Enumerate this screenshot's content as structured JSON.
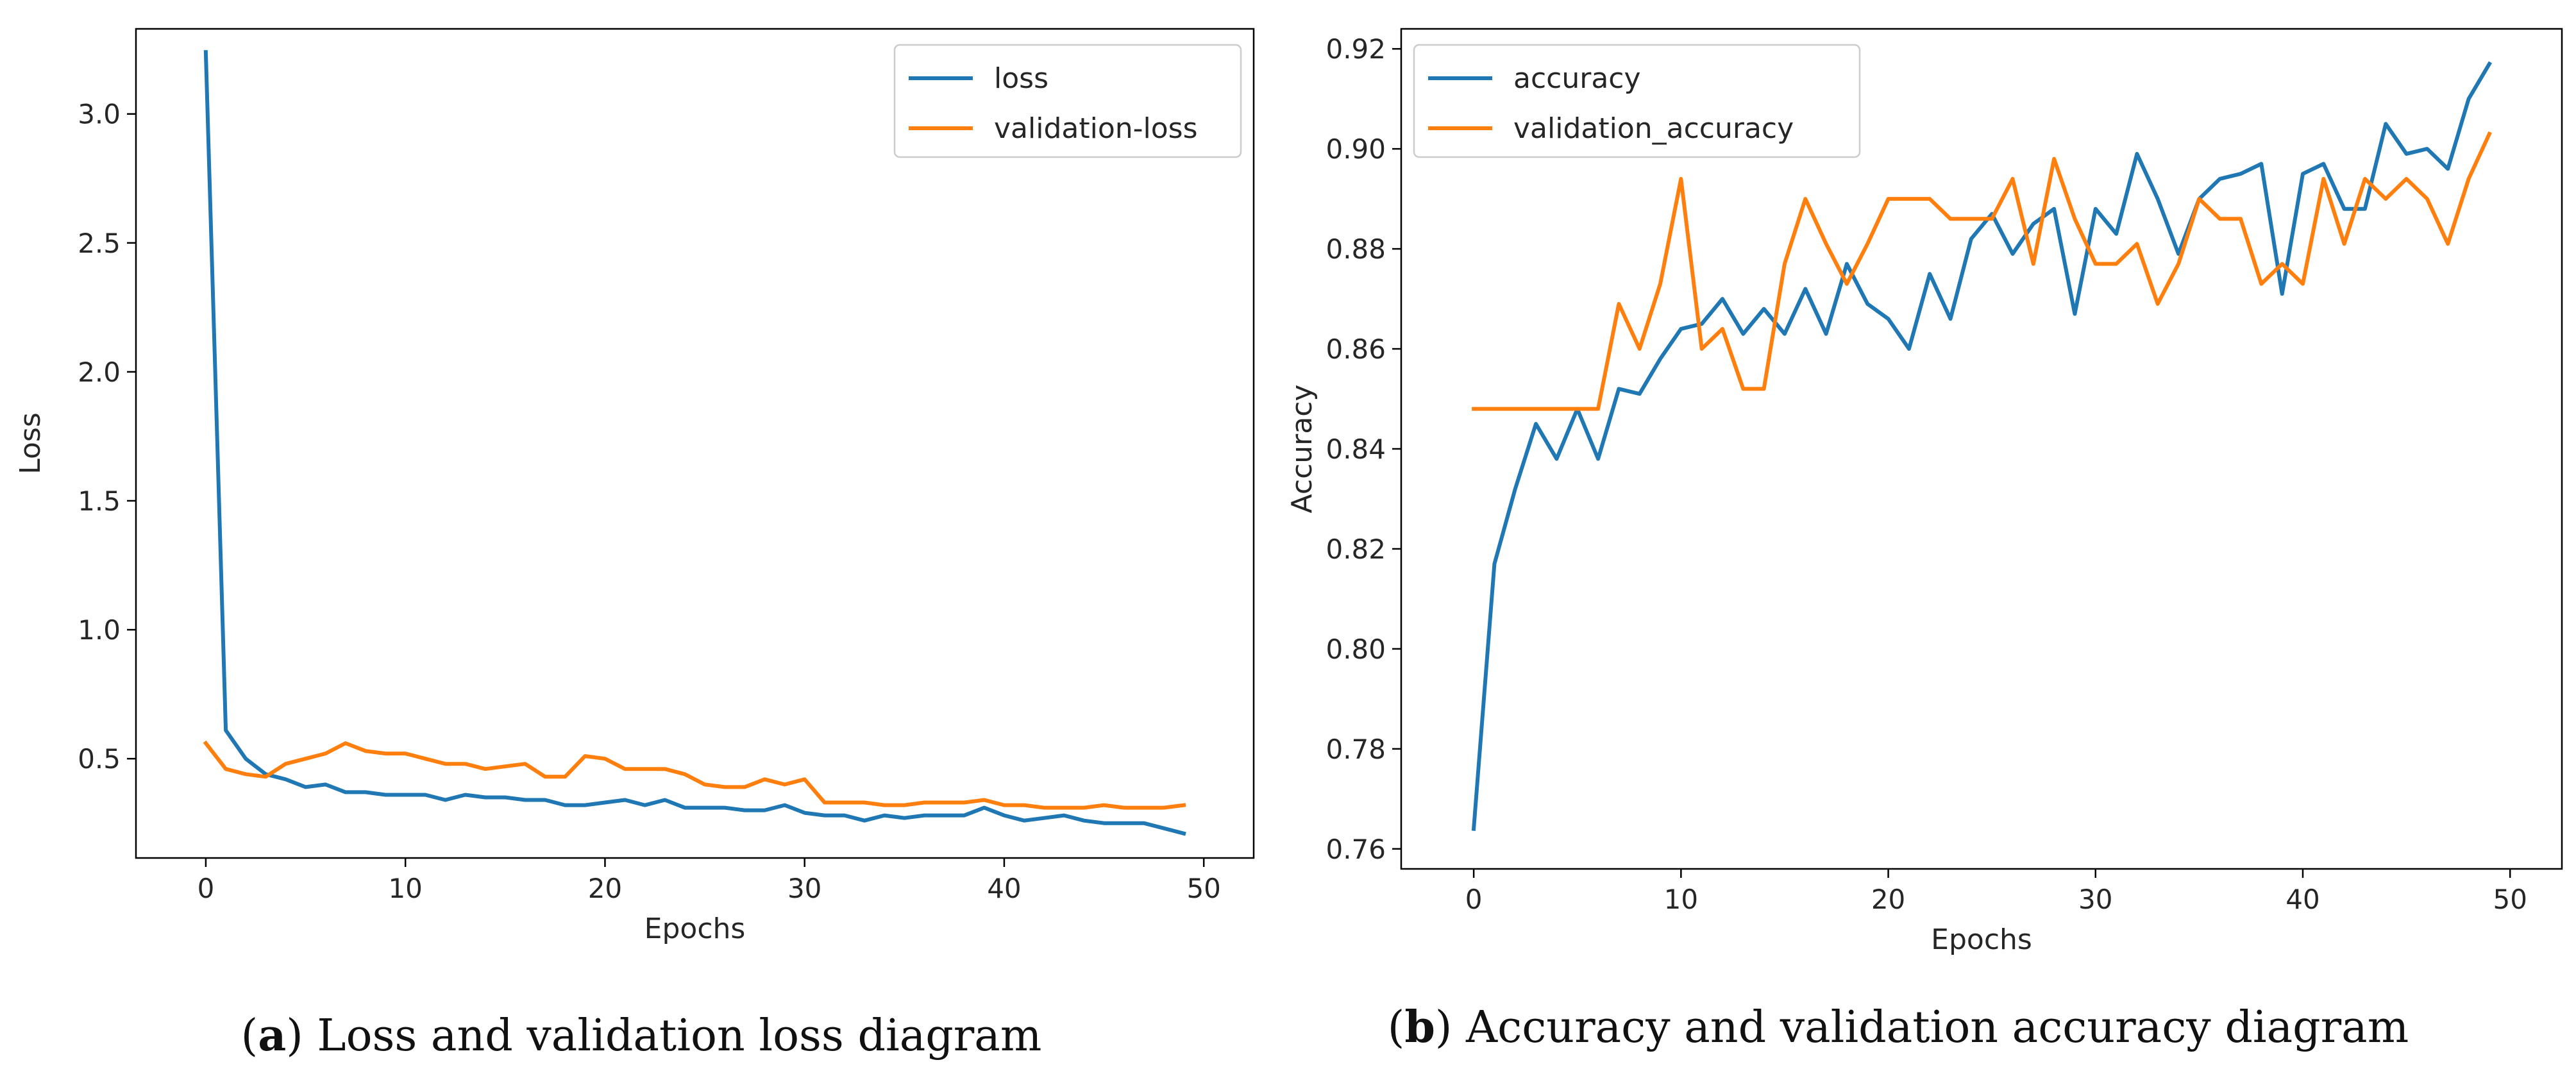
{
  "chart_data": [
    {
      "type": "line",
      "id": "a",
      "title": "",
      "xlabel": "Epochs",
      "ylabel": "Loss",
      "xlim": [
        -3.5,
        52.5
      ],
      "ylim": [
        0.115,
        3.33
      ],
      "xticks": [
        0,
        10,
        20,
        30,
        40,
        50
      ],
      "yticks": [
        0.5,
        1.0,
        1.5,
        2.0,
        2.5,
        3.0
      ],
      "xtick_labels": [
        "0",
        "10",
        "20",
        "30",
        "40",
        "50"
      ],
      "ytick_labels": [
        "0.5",
        "1.0",
        "1.5",
        "2.0",
        "2.5",
        "3.0"
      ],
      "legend_position": "top-right",
      "grid": false,
      "caption": {
        "letter": "a",
        "text": ") Loss and validation loss diagram",
        "open": "("
      },
      "x": [
        0,
        1,
        2,
        3,
        4,
        5,
        6,
        7,
        8,
        9,
        10,
        11,
        12,
        13,
        14,
        15,
        16,
        17,
        18,
        19,
        20,
        21,
        22,
        23,
        24,
        25,
        26,
        27,
        28,
        29,
        30,
        31,
        32,
        33,
        34,
        35,
        36,
        37,
        38,
        39,
        40,
        41,
        42,
        43,
        44,
        45,
        46,
        47,
        48,
        49
      ],
      "series": [
        {
          "name": "loss",
          "color": "#1f77b4",
          "values": [
            3.24,
            0.61,
            0.5,
            0.44,
            0.42,
            0.39,
            0.4,
            0.37,
            0.37,
            0.36,
            0.36,
            0.36,
            0.34,
            0.36,
            0.35,
            0.35,
            0.34,
            0.34,
            0.32,
            0.32,
            0.33,
            0.34,
            0.32,
            0.34,
            0.31,
            0.31,
            0.31,
            0.3,
            0.3,
            0.32,
            0.29,
            0.28,
            0.28,
            0.26,
            0.28,
            0.27,
            0.28,
            0.28,
            0.28,
            0.31,
            0.28,
            0.26,
            0.27,
            0.28,
            0.26,
            0.25,
            0.25,
            0.25,
            0.23,
            0.21
          ]
        },
        {
          "name": "validation-loss",
          "color": "#ff7f0e",
          "values": [
            0.56,
            0.46,
            0.44,
            0.43,
            0.48,
            0.5,
            0.52,
            0.56,
            0.53,
            0.52,
            0.52,
            0.5,
            0.48,
            0.48,
            0.46,
            0.47,
            0.48,
            0.43,
            0.43,
            0.51,
            0.5,
            0.46,
            0.46,
            0.46,
            0.44,
            0.4,
            0.39,
            0.39,
            0.42,
            0.4,
            0.42,
            0.33,
            0.33,
            0.33,
            0.32,
            0.32,
            0.33,
            0.33,
            0.33,
            0.34,
            0.32,
            0.32,
            0.31,
            0.31,
            0.31,
            0.32,
            0.31,
            0.31,
            0.31,
            0.32
          ]
        }
      ]
    },
    {
      "type": "line",
      "id": "b",
      "title": "",
      "xlabel": "Epochs",
      "ylabel": "Accuracy",
      "xlim": [
        -3.5,
        52.5
      ],
      "ylim": [
        0.756,
        0.924
      ],
      "xticks": [
        0,
        10,
        20,
        30,
        40,
        50
      ],
      "yticks": [
        0.76,
        0.78,
        0.8,
        0.82,
        0.84,
        0.86,
        0.88,
        0.9,
        0.92
      ],
      "xtick_labels": [
        "0",
        "10",
        "20",
        "30",
        "40",
        "50"
      ],
      "ytick_labels": [
        "0.76",
        "0.78",
        "0.80",
        "0.82",
        "0.84",
        "0.86",
        "0.88",
        "0.90",
        "0.92"
      ],
      "legend_position": "top-left",
      "grid": false,
      "caption": {
        "letter": "b",
        "text": ") Accuracy and validation accuracy diagram",
        "open": "("
      },
      "x": [
        0,
        1,
        2,
        3,
        4,
        5,
        6,
        7,
        8,
        9,
        10,
        11,
        12,
        13,
        14,
        15,
        16,
        17,
        18,
        19,
        20,
        21,
        22,
        23,
        24,
        25,
        26,
        27,
        28,
        29,
        30,
        31,
        32,
        33,
        34,
        35,
        36,
        37,
        38,
        39,
        40,
        41,
        42,
        43,
        44,
        45,
        46,
        47,
        48,
        49
      ],
      "series": [
        {
          "name": "accuracy",
          "color": "#1f77b4",
          "values": [
            0.764,
            0.817,
            0.832,
            0.845,
            0.838,
            0.848,
            0.838,
            0.852,
            0.851,
            0.858,
            0.864,
            0.865,
            0.87,
            0.863,
            0.868,
            0.863,
            0.872,
            0.863,
            0.877,
            0.869,
            0.866,
            0.86,
            0.875,
            0.866,
            0.882,
            0.887,
            0.879,
            0.885,
            0.888,
            0.867,
            0.888,
            0.883,
            0.899,
            0.89,
            0.879,
            0.89,
            0.894,
            0.895,
            0.897,
            0.871,
            0.895,
            0.897,
            0.888,
            0.888,
            0.905,
            0.899,
            0.9,
            0.896,
            0.91,
            0.917
          ]
        },
        {
          "name": "validation_accuracy",
          "color": "#ff7f0e",
          "values": [
            0.848,
            0.848,
            0.848,
            0.848,
            0.848,
            0.848,
            0.848,
            0.869,
            0.86,
            0.873,
            0.894,
            0.86,
            0.864,
            0.852,
            0.852,
            0.877,
            0.89,
            0.881,
            0.873,
            0.881,
            0.89,
            0.89,
            0.89,
            0.886,
            0.886,
            0.886,
            0.894,
            0.877,
            0.898,
            0.886,
            0.877,
            0.877,
            0.881,
            0.869,
            0.877,
            0.89,
            0.886,
            0.886,
            0.873,
            0.877,
            0.873,
            0.894,
            0.881,
            0.894,
            0.89,
            0.894,
            0.89,
            0.881,
            0.894,
            0.903
          ]
        }
      ]
    }
  ]
}
